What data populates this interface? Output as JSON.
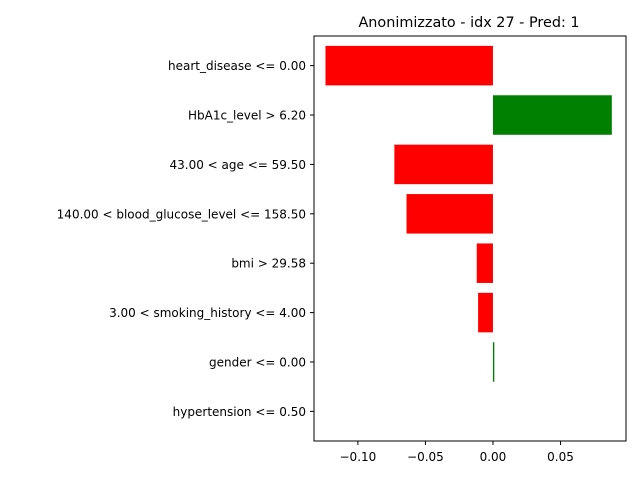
{
  "chart_data": {
    "type": "bar",
    "orientation": "horizontal",
    "title": "Anonimizzato - idx 27 - Pred: 1",
    "xlabel": "",
    "ylabel": "",
    "categories": [
      "heart_disease <= 0.00",
      "HbA1c_level > 6.20",
      "43.00 < age <= 59.50",
      "140.00 < blood_glucose_level <= 158.50",
      "bmi > 29.58",
      "3.00 < smoking_history <= 4.00",
      "gender <= 0.00",
      "hypertension <= 0.50"
    ],
    "values": [
      -0.124,
      0.088,
      -0.073,
      -0.064,
      -0.012,
      -0.011,
      0.001,
      0.0
    ],
    "colors": [
      "#ff0000",
      "#008000",
      "#ff0000",
      "#ff0000",
      "#ff0000",
      "#ff0000",
      "#008000",
      "#ff0000"
    ],
    "positive_color": "#008000",
    "negative_color": "#ff0000",
    "xlim": [
      -0.1325,
      0.0985
    ],
    "xticks": [
      -0.1,
      -0.05,
      0.0,
      0.05
    ],
    "xtick_labels": [
      "−0.10",
      "−0.05",
      "0.00",
      "0.05"
    ],
    "grid": false,
    "legend": "none"
  }
}
